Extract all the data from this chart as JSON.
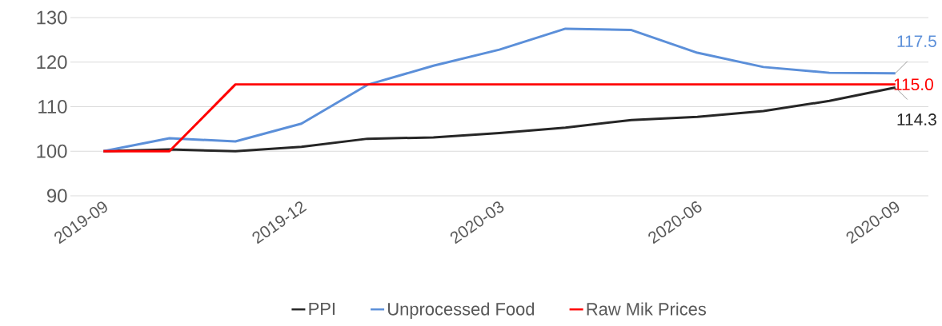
{
  "chart_data": {
    "type": "line",
    "categories": [
      "2019-09",
      null,
      null,
      "2019-12",
      null,
      null,
      "2020-03",
      null,
      null,
      "2020-06",
      null,
      null,
      "2020-09"
    ],
    "series": [
      {
        "name": "PPI",
        "color": "#262626",
        "values": [
          100,
          100.4,
          100,
          101,
          102.8,
          103.1,
          104.1,
          105.3,
          107,
          107.7,
          109,
          111.3,
          114.3
        ]
      },
      {
        "name": "Unprocessed Food",
        "color": "#5b8fd9",
        "values": [
          100,
          102.9,
          102.2,
          106.2,
          114.9,
          119.2,
          122.8,
          127.5,
          127.2,
          122.1,
          118.9,
          117.6,
          117.5
        ]
      },
      {
        "name": "Raw Mik Prices",
        "color": "#ff0000",
        "values": [
          100,
          100,
          115,
          115,
          115,
          115,
          115,
          115,
          115,
          115,
          115,
          115,
          115
        ]
      }
    ],
    "ylim": [
      90,
      130
    ],
    "yticks": [
      90,
      100,
      110,
      120,
      130
    ],
    "grid": "y",
    "legend": "bottom",
    "marker": "none",
    "line_style": "solid",
    "annotations": [
      {
        "text": "117.5",
        "x": "2020-09",
        "y": 117.5
      },
      {
        "text": "115.0",
        "x": "2020-09",
        "y": 115
      },
      {
        "text": "114.3",
        "x": "2020-09",
        "y": 114.3
      }
    ]
  }
}
